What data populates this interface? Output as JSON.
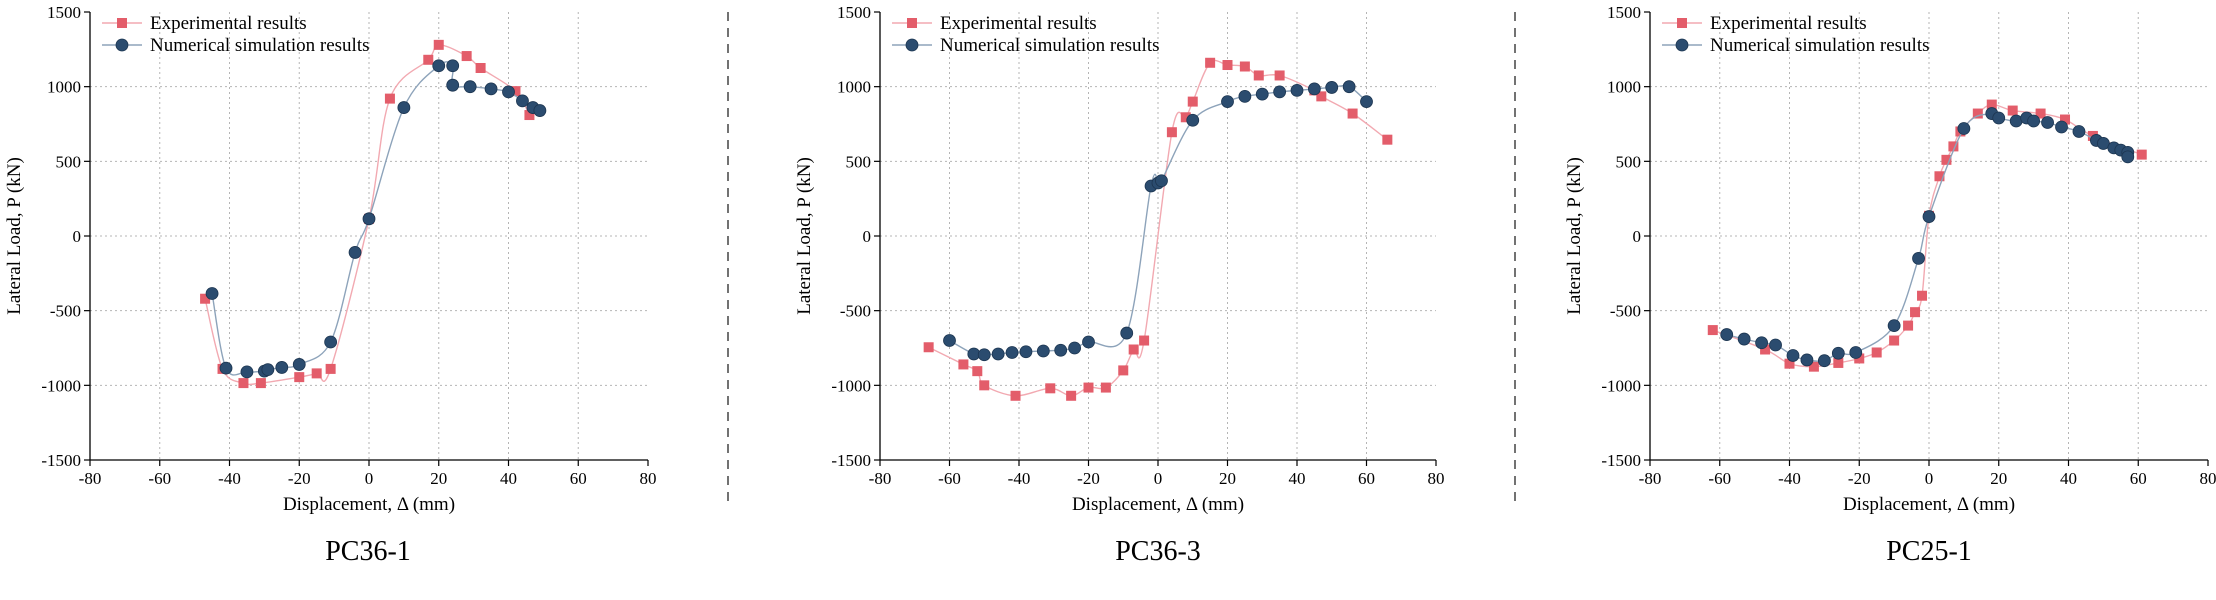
{
  "colors": {
    "experimental": "#e35d6a",
    "experimental_line": "#f2a9b1",
    "numerical": "#2b4c6f",
    "numerical_line": "#8da3ba",
    "grid": "#b5b5b5",
    "divider": "#444444"
  },
  "chart_data": [
    {
      "type": "scatter",
      "caption": "PC36-1",
      "xlabel": "Displacement, Δ (mm)",
      "ylabel": "Lateral Load, P (kN)",
      "xlim": [
        -80,
        80
      ],
      "ylim": [
        -1500,
        1500
      ],
      "xticks": [
        -80,
        -60,
        -40,
        -20,
        0,
        20,
        40,
        60,
        80
      ],
      "yticks": [
        -1500,
        -1000,
        -500,
        0,
        500,
        1000,
        1500
      ],
      "grid": true,
      "legend": "top-left",
      "series": [
        {
          "name": "Experimental results",
          "marker": "square",
          "points": [
            [
              -47,
              -420
            ],
            [
              -42,
              -890
            ],
            [
              -36,
              -985
            ],
            [
              -31,
              -985
            ],
            [
              -20,
              -945
            ],
            [
              -15,
              -920
            ],
            [
              -11,
              -890
            ],
            [
              0,
              115
            ],
            [
              6,
              920
            ],
            [
              17,
              1180
            ],
            [
              20,
              1280
            ],
            [
              28,
              1205
            ],
            [
              32,
              1125
            ],
            [
              42,
              970
            ],
            [
              46,
              810
            ]
          ]
        },
        {
          "name": "Numerical simulation results",
          "marker": "circle",
          "points": [
            [
              -45,
              -385
            ],
            [
              -41,
              -885
            ],
            [
              -35,
              -910
            ],
            [
              -30,
              -905
            ],
            [
              -29,
              -895
            ],
            [
              -25,
              -880
            ],
            [
              -20,
              -860
            ],
            [
              -11,
              -710
            ],
            [
              -4,
              -110
            ],
            [
              0,
              115
            ],
            [
              10,
              860
            ],
            [
              20,
              1140
            ],
            [
              24,
              1140
            ],
            [
              24,
              1010
            ],
            [
              29,
              1000
            ],
            [
              35,
              985
            ],
            [
              40,
              965
            ],
            [
              44,
              905
            ],
            [
              47,
              860
            ],
            [
              49,
              840
            ]
          ]
        }
      ]
    },
    {
      "type": "scatter",
      "caption": "PC36-3",
      "xlabel": "Displacement, Δ (mm)",
      "ylabel": "Lateral Load, P (kN)",
      "xlim": [
        -80,
        80
      ],
      "ylim": [
        -1500,
        1500
      ],
      "xticks": [
        -80,
        -60,
        -40,
        -20,
        0,
        20,
        40,
        60,
        80
      ],
      "yticks": [
        -1500,
        -1000,
        -500,
        0,
        500,
        1000,
        1500
      ],
      "grid": true,
      "legend": "top-left",
      "series": [
        {
          "name": "Experimental results",
          "marker": "square",
          "points": [
            [
              -66,
              -745
            ],
            [
              -56,
              -860
            ],
            [
              -52,
              -905
            ],
            [
              -50,
              -1000
            ],
            [
              -41,
              -1070
            ],
            [
              -31,
              -1020
            ],
            [
              -25,
              -1070
            ],
            [
              -20,
              -1015
            ],
            [
              -15,
              -1015
            ],
            [
              -10,
              -900
            ],
            [
              -7,
              -760
            ],
            [
              -4,
              -700
            ],
            [
              4,
              695
            ],
            [
              8,
              795
            ],
            [
              10,
              900
            ],
            [
              15,
              1160
            ],
            [
              20,
              1145
            ],
            [
              25,
              1135
            ],
            [
              29,
              1075
            ],
            [
              35,
              1075
            ],
            [
              45,
              975
            ],
            [
              47,
              935
            ],
            [
              56,
              820
            ],
            [
              66,
              645
            ]
          ]
        },
        {
          "name": "Numerical simulation results",
          "marker": "circle",
          "points": [
            [
              -60,
              -700
            ],
            [
              -53,
              -790
            ],
            [
              -50,
              -795
            ],
            [
              -46,
              -790
            ],
            [
              -42,
              -780
            ],
            [
              -38,
              -775
            ],
            [
              -33,
              -770
            ],
            [
              -28,
              -765
            ],
            [
              -24,
              -750
            ],
            [
              -20,
              -710
            ],
            [
              -9,
              -650
            ],
            [
              -2,
              335
            ],
            [
              0,
              355
            ],
            [
              1,
              370
            ],
            [
              10,
              775
            ],
            [
              20,
              900
            ],
            [
              25,
              935
            ],
            [
              30,
              950
            ],
            [
              35,
              965
            ],
            [
              40,
              975
            ],
            [
              45,
              985
            ],
            [
              50,
              995
            ],
            [
              55,
              1000
            ],
            [
              60,
              900
            ]
          ]
        }
      ]
    },
    {
      "type": "scatter",
      "caption": "PC25-1",
      "xlabel": "Displacement, Δ (mm)",
      "ylabel": "Lateral Load, P (kN)",
      "xlim": [
        -80,
        80
      ],
      "ylim": [
        -1500,
        1500
      ],
      "xticks": [
        -80,
        -60,
        -40,
        -20,
        0,
        20,
        40,
        60,
        80
      ],
      "yticks": [
        -1500,
        -1000,
        -500,
        0,
        500,
        1000,
        1500
      ],
      "grid": true,
      "legend": "top-left",
      "series": [
        {
          "name": "Experimental results",
          "marker": "square",
          "points": [
            [
              -62,
              -630
            ],
            [
              -47,
              -760
            ],
            [
              -40,
              -855
            ],
            [
              -33,
              -875
            ],
            [
              -26,
              -850
            ],
            [
              -20,
              -820
            ],
            [
              -15,
              -780
            ],
            [
              -10,
              -700
            ],
            [
              -6,
              -600
            ],
            [
              -4,
              -510
            ],
            [
              -2,
              -400
            ],
            [
              0,
              135
            ],
            [
              3,
              400
            ],
            [
              5,
              510
            ],
            [
              7,
              600
            ],
            [
              9,
              700
            ],
            [
              14,
              820
            ],
            [
              18,
              880
            ],
            [
              24,
              840
            ],
            [
              32,
              820
            ],
            [
              39,
              780
            ],
            [
              47,
              670
            ],
            [
              61,
              545
            ]
          ]
        },
        {
          "name": "Numerical simulation results",
          "marker": "circle",
          "points": [
            [
              -58,
              -660
            ],
            [
              -53,
              -690
            ],
            [
              -48,
              -715
            ],
            [
              -44,
              -730
            ],
            [
              -39,
              -800
            ],
            [
              -35,
              -830
            ],
            [
              -30,
              -835
            ],
            [
              -26,
              -785
            ],
            [
              -21,
              -780
            ],
            [
              -10,
              -600
            ],
            [
              -3,
              -150
            ],
            [
              0,
              130
            ],
            [
              10,
              720
            ],
            [
              18,
              820
            ],
            [
              20,
              790
            ],
            [
              25,
              770
            ],
            [
              28,
              790
            ],
            [
              30,
              770
            ],
            [
              34,
              760
            ],
            [
              38,
              730
            ],
            [
              43,
              700
            ],
            [
              48,
              640
            ],
            [
              50,
              620
            ],
            [
              53,
              590
            ],
            [
              55,
              575
            ],
            [
              57,
              560
            ],
            [
              57,
              530
            ]
          ]
        }
      ]
    }
  ]
}
